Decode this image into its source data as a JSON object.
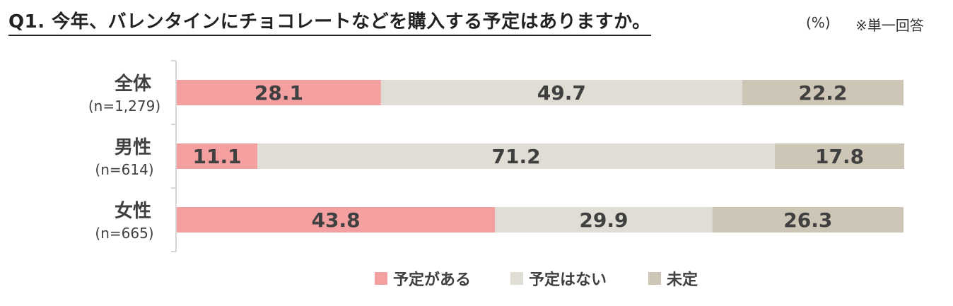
{
  "title": "Q1. 今年、バレンタインにチョコレートなどを購入する予定はありますか。",
  "unit": "(%)",
  "note": "※単一回答",
  "colors": {
    "series": [
      "#f4a0a0",
      "#e0ddd5",
      "#cdc5b6"
    ],
    "axis": "#c8c8c8",
    "text": "#404040"
  },
  "chart_data": {
    "type": "bar",
    "orientation": "horizontal",
    "stacked": true,
    "title": "Q1. 今年、バレンタインにチョコレートなどを購入する予定はありますか。",
    "categories": [
      "全体",
      "男性",
      "女性"
    ],
    "category_sublabels": [
      "(n=1,279)",
      "(n=614)",
      "(n=665)"
    ],
    "series": [
      {
        "name": "予定がある",
        "values": [
          28.1,
          11.1,
          43.8
        ]
      },
      {
        "name": "予定はない",
        "values": [
          49.7,
          71.2,
          29.9
        ]
      },
      {
        "name": "未定",
        "values": [
          22.2,
          17.8,
          26.3
        ]
      }
    ],
    "xlim": [
      0,
      100
    ],
    "grid": false,
    "legend_position": "bottom"
  }
}
